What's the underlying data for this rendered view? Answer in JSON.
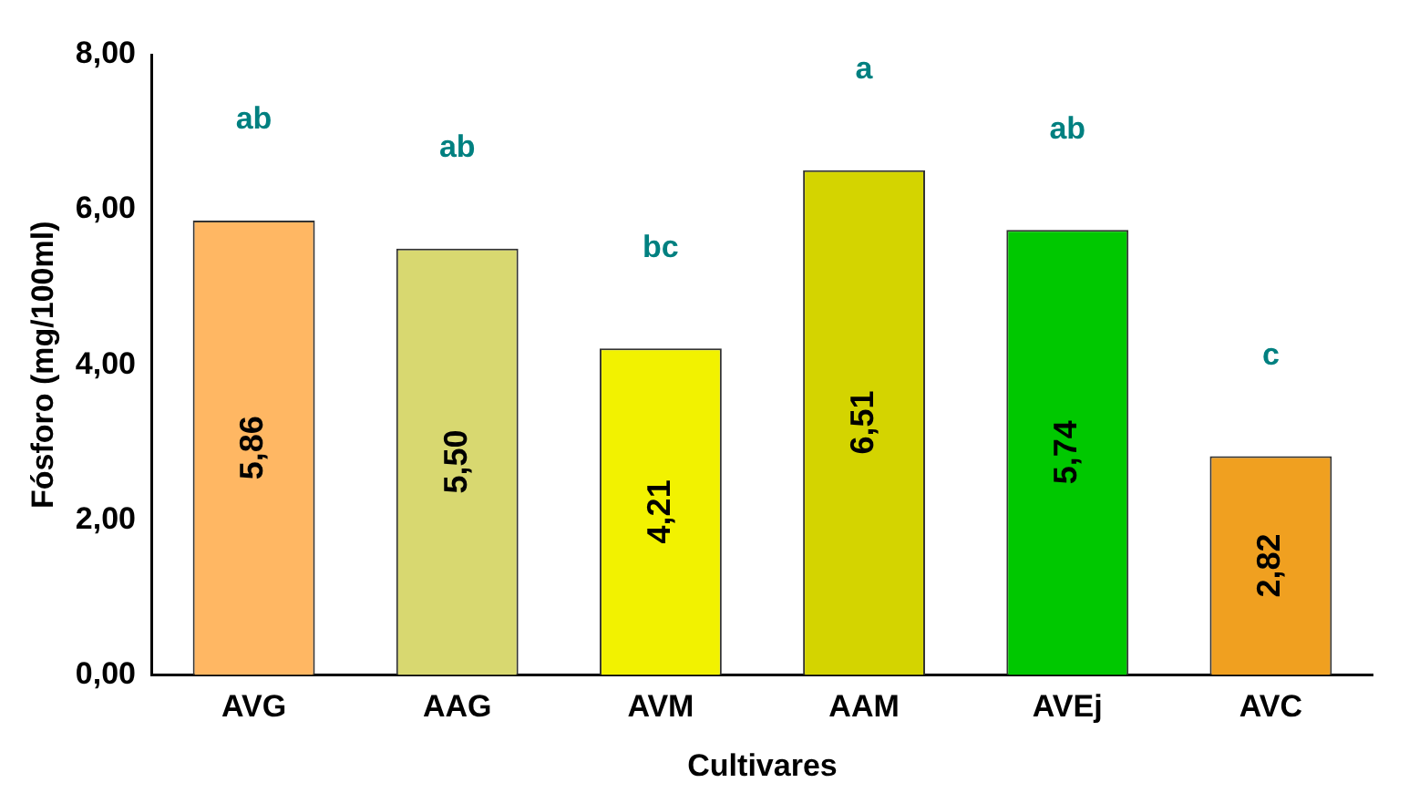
{
  "chart_data": {
    "type": "bar",
    "xlabel": "Cultivares",
    "ylabel": "Fósforo (mg/100ml)",
    "categories": [
      "AVG",
      "AAG",
      "AVM",
      "AAM",
      "AVEj",
      "AVC"
    ],
    "values": [
      5.86,
      5.5,
      4.21,
      6.51,
      5.74,
      2.82
    ],
    "colors": [
      "#ffb763",
      "#d8d870",
      "#f2f200",
      "#d4d400",
      "#00c800",
      "#f0a020"
    ],
    "value_labels": [
      "5,86",
      "5,50",
      "4,21",
      "6,51",
      "5,74",
      "2,82"
    ],
    "ylim": [
      0,
      8
    ],
    "yticks": [
      {
        "value": 0,
        "label": "0,00"
      },
      {
        "value": 2,
        "label": "2,00"
      },
      {
        "value": 4,
        "label": "4,00"
      },
      {
        "value": 6,
        "label": "6,00"
      },
      {
        "value": 8,
        "label": "8,00"
      }
    ],
    "annotations": [
      "ab",
      "ab",
      "bc",
      "a",
      "ab",
      "c"
    ],
    "grid": false,
    "legend": false
  }
}
